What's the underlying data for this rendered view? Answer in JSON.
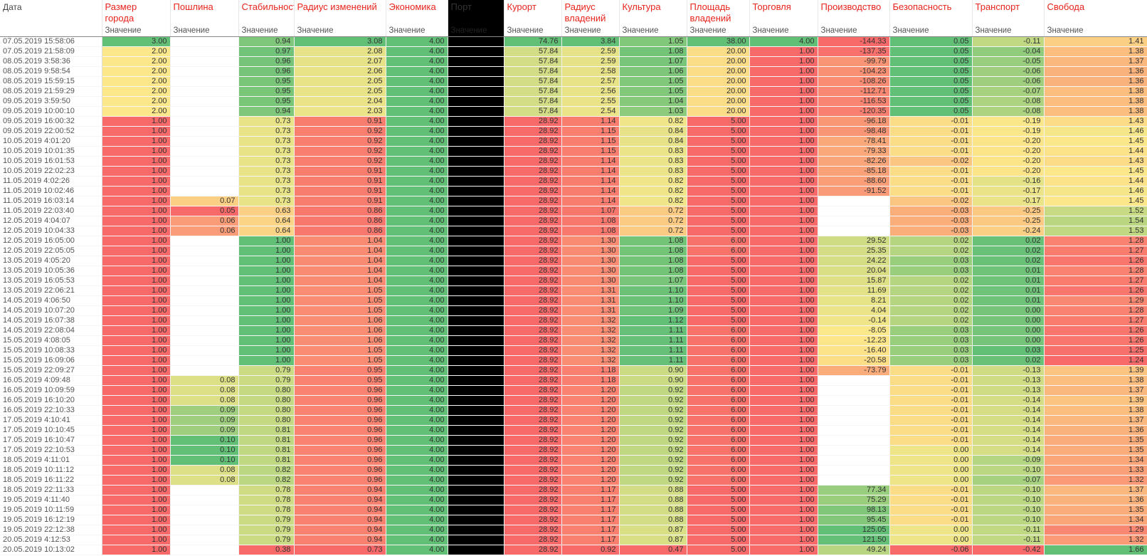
{
  "colors": {
    "red": "#f86a6a",
    "green": "#61bf76",
    "yellow": "#fce88a",
    "black": "#000000"
  },
  "header": {
    "date_label": "Дата",
    "sub_label": "Значение",
    "columns": [
      "Размер города",
      "Пошлина",
      "Стабильность",
      "Радиус изменений",
      "Экономика",
      "Порт",
      "Курорт",
      "Радиус владений",
      "Культура",
      "Площадь владений",
      "Торговля",
      "Производство",
      "Безопасность",
      "Транспорт",
      "Свобода"
    ]
  },
  "rows": [
    [
      "07.05.2019 15:58:06",
      "3.00",
      "",
      "0.94",
      "3.08",
      "4.00",
      "",
      "74.76",
      "3.84",
      "1.05",
      "38.00",
      "4.00",
      "-144.33",
      "0.05",
      "-0.11",
      "1.41"
    ],
    [
      "07.05.2019 21:58:09",
      "2.00",
      "",
      "0.97",
      "2.08",
      "4.00",
      "",
      "57.84",
      "2.59",
      "1.08",
      "20.00",
      "1.00",
      "-137.35",
      "0.05",
      "-0.04",
      "1.38"
    ],
    [
      "08.05.2019 3:58:36",
      "2.00",
      "",
      "0.96",
      "2.07",
      "4.00",
      "",
      "57.84",
      "2.59",
      "1.07",
      "20.00",
      "1.00",
      "-99.79",
      "0.05",
      "-0.05",
      "1.37"
    ],
    [
      "08.05.2019 9:58:54",
      "2.00",
      "",
      "0.96",
      "2.06",
      "4.00",
      "",
      "57.84",
      "2.58",
      "1.06",
      "20.00",
      "1.00",
      "-104.23",
      "0.05",
      "-0.06",
      "1.36"
    ],
    [
      "08.05.2019 15:59:15",
      "2.00",
      "",
      "0.95",
      "2.05",
      "4.00",
      "",
      "57.84",
      "2.57",
      "1.05",
      "20.00",
      "1.00",
      "-108.26",
      "0.05",
      "-0.06",
      "1.36"
    ],
    [
      "08.05.2019 21:59:29",
      "2.00",
      "",
      "0.95",
      "2.05",
      "4.00",
      "",
      "57.84",
      "2.56",
      "1.05",
      "20.00",
      "1.00",
      "-112.71",
      "0.05",
      "-0.07",
      "1.38"
    ],
    [
      "09.05.2019 3:59:50",
      "2.00",
      "",
      "0.95",
      "2.04",
      "4.00",
      "",
      "57.84",
      "2.55",
      "1.04",
      "20.00",
      "1.00",
      "-116.53",
      "0.05",
      "-0.08",
      "1.38"
    ],
    [
      "09.05.2019 10:00:10",
      "2.00",
      "",
      "0.94",
      "2.03",
      "4.00",
      "",
      "57.84",
      "2.54",
      "1.03",
      "20.00",
      "1.00",
      "-120.35",
      "0.05",
      "-0.08",
      "1.38"
    ],
    [
      "09.05.2019 16:00:32",
      "1.00",
      "",
      "0.73",
      "0.91",
      "4.00",
      "",
      "28.92",
      "1.14",
      "0.82",
      "5.00",
      "1.00",
      "-96.18",
      "-0.01",
      "-0.19",
      "1.43"
    ],
    [
      "09.05.2019 22:00:52",
      "1.00",
      "",
      "0.73",
      "0.92",
      "4.00",
      "",
      "28.92",
      "1.15",
      "0.84",
      "5.00",
      "1.00",
      "-98.48",
      "-0.01",
      "-0.19",
      "1.46"
    ],
    [
      "10.05.2019 4:01:20",
      "1.00",
      "",
      "0.73",
      "0.92",
      "4.00",
      "",
      "28.92",
      "1.15",
      "0.84",
      "5.00",
      "1.00",
      "-78.41",
      "-0.01",
      "-0.20",
      "1.45"
    ],
    [
      "10.05.2019 10:01:35",
      "1.00",
      "",
      "0.73",
      "0.92",
      "4.00",
      "",
      "28.92",
      "1.15",
      "0.83",
      "5.00",
      "1.00",
      "-79.33",
      "-0.01",
      "-0.20",
      "1.44"
    ],
    [
      "10.05.2019 16:01:53",
      "1.00",
      "",
      "0.73",
      "0.92",
      "4.00",
      "",
      "28.92",
      "1.14",
      "0.83",
      "5.00",
      "1.00",
      "-82.26",
      "-0.02",
      "-0.20",
      "1.43"
    ],
    [
      "10.05.2019 22:02:23",
      "1.00",
      "",
      "0.73",
      "0.91",
      "4.00",
      "",
      "28.92",
      "1.14",
      "0.83",
      "5.00",
      "1.00",
      "-85.18",
      "-0.01",
      "-0.20",
      "1.45"
    ],
    [
      "11.05.2019 4:02:26",
      "1.00",
      "",
      "0.73",
      "0.91",
      "4.00",
      "",
      "28.92",
      "1.14",
      "0.82",
      "5.00",
      "1.00",
      "-88.60",
      "-0.01",
      "-0.16",
      "1.44"
    ],
    [
      "11.05.2019 10:02:46",
      "1.00",
      "",
      "0.73",
      "0.91",
      "4.00",
      "",
      "28.92",
      "1.14",
      "0.82",
      "5.00",
      "1.00",
      "-91.52",
      "-0.01",
      "-0.17",
      "1.46"
    ],
    [
      "11.05.2019 16:03:14",
      "1.00",
      "0.07",
      "0.73",
      "0.91",
      "4.00",
      "",
      "28.92",
      "1.14",
      "0.82",
      "5.00",
      "1.00",
      "",
      "-0.02",
      "-0.17",
      "1.45"
    ],
    [
      "11.05.2019 22:03:40",
      "1.00",
      "0.05",
      "0.63",
      "0.86",
      "4.00",
      "",
      "28.92",
      "1.07",
      "0.72",
      "5.00",
      "1.00",
      "",
      "-0.03",
      "-0.25",
      "1.52"
    ],
    [
      "12.05.2019 4:04:07",
      "1.00",
      "0.06",
      "0.64",
      "0.86",
      "4.00",
      "",
      "28.92",
      "1.08",
      "0.72",
      "5.00",
      "1.00",
      "",
      "-0.03",
      "-0.25",
      "1.54"
    ],
    [
      "12.05.2019 10:04:33",
      "1.00",
      "0.06",
      "0.64",
      "0.86",
      "4.00",
      "",
      "28.92",
      "1.08",
      "0.72",
      "5.00",
      "1.00",
      "",
      "-0.03",
      "-0.24",
      "1.53"
    ],
    [
      "12.05.2019 16:05:00",
      "1.00",
      "",
      "1.00",
      "1.04",
      "4.00",
      "",
      "28.92",
      "1.30",
      "1.08",
      "6.00",
      "1.00",
      "29.52",
      "0.02",
      "0.02",
      "1.28"
    ],
    [
      "12.05.2019 22:05:05",
      "1.00",
      "",
      "1.00",
      "1.04",
      "4.00",
      "",
      "28.92",
      "1.30",
      "1.08",
      "6.00",
      "1.00",
      "25.35",
      "0.02",
      "0.02",
      "1.27"
    ],
    [
      "13.05.2019 4:05:20",
      "1.00",
      "",
      "1.00",
      "1.04",
      "4.00",
      "",
      "28.92",
      "1.30",
      "1.08",
      "5.00",
      "1.00",
      "24.22",
      "0.03",
      "0.02",
      "1.26"
    ],
    [
      "13.05.2019 10:05:36",
      "1.00",
      "",
      "1.00",
      "1.04",
      "4.00",
      "",
      "28.92",
      "1.30",
      "1.08",
      "5.00",
      "1.00",
      "20.04",
      "0.03",
      "0.01",
      "1.28"
    ],
    [
      "13.05.2019 16:05:53",
      "1.00",
      "",
      "1.00",
      "1.04",
      "4.00",
      "",
      "28.92",
      "1.30",
      "1.07",
      "5.00",
      "1.00",
      "15.87",
      "0.02",
      "0.01",
      "1.27"
    ],
    [
      "13.05.2019 22:06:21",
      "1.00",
      "",
      "1.00",
      "1.05",
      "4.00",
      "",
      "28.92",
      "1.31",
      "1.10",
      "5.00",
      "1.00",
      "11.69",
      "0.02",
      "0.01",
      "1.26"
    ],
    [
      "14.05.2019 4:06:50",
      "1.00",
      "",
      "1.00",
      "1.05",
      "4.00",
      "",
      "28.92",
      "1.31",
      "1.10",
      "5.00",
      "1.00",
      "8.21",
      "0.02",
      "0.01",
      "1.29"
    ],
    [
      "14.05.2019 10:07:20",
      "1.00",
      "",
      "1.00",
      "1.05",
      "4.00",
      "",
      "28.92",
      "1.31",
      "1.09",
      "5.00",
      "1.00",
      "4.04",
      "0.02",
      "0.00",
      "1.28"
    ],
    [
      "14.05.2019 16:07:38",
      "1.00",
      "",
      "1.00",
      "1.06",
      "4.00",
      "",
      "28.92",
      "1.32",
      "1.12",
      "5.00",
      "1.00",
      "-0.14",
      "0.02",
      "0.00",
      "1.27"
    ],
    [
      "14.05.2019 22:08:04",
      "1.00",
      "",
      "1.00",
      "1.06",
      "4.00",
      "",
      "28.92",
      "1.32",
      "1.11",
      "6.00",
      "1.00",
      "-8.05",
      "0.03",
      "0.00",
      "1.26"
    ],
    [
      "15.05.2019 4:08:05",
      "1.00",
      "",
      "1.00",
      "1.06",
      "4.00",
      "",
      "28.92",
      "1.32",
      "1.11",
      "6.00",
      "1.00",
      "-12.23",
      "0.03",
      "0.00",
      "1.26"
    ],
    [
      "15.05.2019 10:08:33",
      "1.00",
      "",
      "1.00",
      "1.05",
      "4.00",
      "",
      "28.92",
      "1.32",
      "1.11",
      "6.00",
      "1.00",
      "-16.40",
      "0.03",
      "0.03",
      "1.25"
    ],
    [
      "15.05.2019 16:09:06",
      "1.00",
      "",
      "1.00",
      "1.05",
      "4.00",
      "",
      "28.92",
      "1.32",
      "1.11",
      "6.00",
      "1.00",
      "-20.58",
      "0.03",
      "0.02",
      "1.24"
    ],
    [
      "15.05.2019 22:09:27",
      "1.00",
      "",
      "0.79",
      "0.95",
      "4.00",
      "",
      "28.92",
      "1.18",
      "0.90",
      "6.00",
      "1.00",
      "-73.79",
      "-0.01",
      "-0.13",
      "1.39"
    ],
    [
      "16.05.2019 4:09:48",
      "1.00",
      "0.08",
      "0.79",
      "0.95",
      "4.00",
      "",
      "28.92",
      "1.18",
      "0.90",
      "6.00",
      "1.00",
      "",
      "-0.01",
      "-0.13",
      "1.38"
    ],
    [
      "16.05.2019 10:09:59",
      "1.00",
      "0.08",
      "0.80",
      "0.96",
      "4.00",
      "",
      "28.92",
      "1.20",
      "0.92",
      "6.00",
      "1.00",
      "",
      "-0.01",
      "-0.13",
      "1.37"
    ],
    [
      "16.05.2019 16:10:20",
      "1.00",
      "0.08",
      "0.80",
      "0.96",
      "4.00",
      "",
      "28.92",
      "1.20",
      "0.92",
      "6.00",
      "1.00",
      "",
      "-0.01",
      "-0.14",
      "1.39"
    ],
    [
      "16.05.2019 22:10:33",
      "1.00",
      "0.09",
      "0.80",
      "0.96",
      "4.00",
      "",
      "28.92",
      "1.20",
      "0.92",
      "6.00",
      "1.00",
      "",
      "-0.01",
      "-0.14",
      "1.38"
    ],
    [
      "17.05.2019 4:10:41",
      "1.00",
      "0.09",
      "0.80",
      "0.96",
      "4.00",
      "",
      "28.92",
      "1.20",
      "0.92",
      "6.00",
      "1.00",
      "",
      "-0.01",
      "-0.14",
      "1.37"
    ],
    [
      "17.05.2019 10:10:45",
      "1.00",
      "0.09",
      "0.81",
      "0.96",
      "4.00",
      "",
      "28.92",
      "1.20",
      "0.92",
      "6.00",
      "1.00",
      "",
      "-0.01",
      "-0.14",
      "1.36"
    ],
    [
      "17.05.2019 16:10:47",
      "1.00",
      "0.10",
      "0.81",
      "0.96",
      "4.00",
      "",
      "28.92",
      "1.20",
      "0.92",
      "6.00",
      "1.00",
      "",
      "-0.01",
      "-0.14",
      "1.35"
    ],
    [
      "17.05.2019 22:10:53",
      "1.00",
      "0.10",
      "0.81",
      "0.96",
      "4.00",
      "",
      "28.92",
      "1.20",
      "0.92",
      "6.00",
      "1.00",
      "",
      "0.00",
      "-0.14",
      "1.35"
    ],
    [
      "18.05.2019 4:11:01",
      "1.00",
      "0.10",
      "0.81",
      "0.96",
      "4.00",
      "",
      "28.92",
      "1.20",
      "0.92",
      "6.00",
      "1.00",
      "",
      "0.00",
      "-0.09",
      "1.34"
    ],
    [
      "18.05.2019 10:11:12",
      "1.00",
      "0.08",
      "0.82",
      "0.96",
      "4.00",
      "",
      "28.92",
      "1.20",
      "0.92",
      "6.00",
      "1.00",
      "",
      "0.00",
      "-0.10",
      "1.33"
    ],
    [
      "18.05.2019 16:11:22",
      "1.00",
      "0.08",
      "0.82",
      "0.96",
      "4.00",
      "",
      "28.92",
      "1.20",
      "0.92",
      "6.00",
      "1.00",
      "",
      "0.00",
      "-0.07",
      "1.32"
    ],
    [
      "18.05.2019 22:11:33",
      "1.00",
      "",
      "0.78",
      "0.94",
      "4.00",
      "",
      "28.92",
      "1.17",
      "0.88",
      "5.00",
      "1.00",
      "77.34",
      "-0.01",
      "-0.10",
      "1.37"
    ],
    [
      "19.05.2019 4:11:40",
      "1.00",
      "",
      "0.78",
      "0.94",
      "4.00",
      "",
      "28.92",
      "1.17",
      "0.88",
      "5.00",
      "1.00",
      "75.29",
      "-0.01",
      "-0.10",
      "1.36"
    ],
    [
      "19.05.2019 10:11:59",
      "1.00",
      "",
      "0.78",
      "0.94",
      "4.00",
      "",
      "28.92",
      "1.17",
      "0.88",
      "5.00",
      "1.00",
      "98.13",
      "-0.01",
      "-0.10",
      "1.35"
    ],
    [
      "19.05.2019 16:12:19",
      "1.00",
      "",
      "0.79",
      "0.94",
      "4.00",
      "",
      "28.92",
      "1.17",
      "0.88",
      "5.00",
      "1.00",
      "95.45",
      "-0.01",
      "-0.10",
      "1.34"
    ],
    [
      "19.05.2019 22:12:38",
      "1.00",
      "",
      "0.79",
      "0.94",
      "4.00",
      "",
      "28.92",
      "1.17",
      "0.87",
      "5.00",
      "1.00",
      "125.05",
      "0.00",
      "-0.11",
      "1.29"
    ],
    [
      "20.05.2019 4:12:53",
      "1.00",
      "",
      "0.79",
      "0.94",
      "4.00",
      "",
      "28.92",
      "1.17",
      "0.87",
      "5.00",
      "1.00",
      "121.50",
      "0.00",
      "-0.11",
      "1.32"
    ],
    [
      "20.05.2019 10:13:02",
      "1.00",
      "",
      "0.38",
      "0.73",
      "4.00",
      "",
      "28.92",
      "0.92",
      "0.47",
      "5.00",
      "1.00",
      "49.24",
      "-0.06",
      "-0.42",
      "1.66"
    ]
  ]
}
